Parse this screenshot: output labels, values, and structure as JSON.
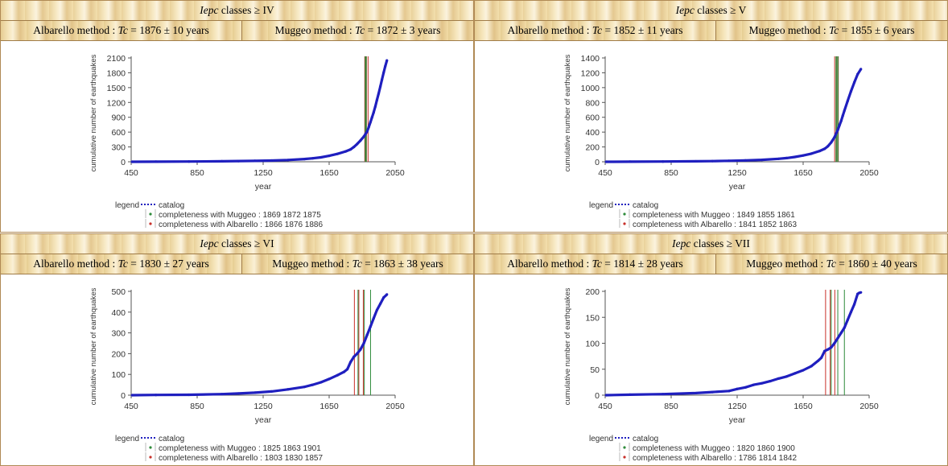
{
  "panels": [
    {
      "title_var": "Iepc",
      "title_text": " classes ≥ IV",
      "albarello": {
        "prefix": "Albarello method : ",
        "tc": "Tc",
        "value": " = 1876 ± 10 years"
      },
      "muggeo": {
        "prefix": "Muggeo method : ",
        "tc": "Tc",
        "value": " = 1872 ± 3 years"
      }
    },
    {
      "title_var": "Iepc",
      "title_text": " classes ≥ V",
      "albarello": {
        "prefix": "Albarello method : ",
        "tc": "Tc",
        "value": " = 1852 ± 11 years"
      },
      "muggeo": {
        "prefix": "Muggeo method : ",
        "tc": "Tc",
        "value": " = 1855 ± 6 years"
      }
    },
    {
      "title_var": "Iepc",
      "title_text": " classes ≥ VI",
      "albarello": {
        "prefix": "Albarello method : ",
        "tc": "Tc",
        "value": " = 1830 ± 27 years"
      },
      "muggeo": {
        "prefix": "Muggeo method : ",
        "tc": "Tc",
        "value": " = 1863 ± 38 years"
      }
    },
    {
      "title_var": "Iepc",
      "title_text": " classes ≥ VII",
      "albarello": {
        "prefix": "Albarello method : ",
        "tc": "Tc",
        "value": " = 1814 ± 28 years"
      },
      "muggeo": {
        "prefix": "Muggeo method : ",
        "tc": "Tc",
        "value": " = 1860 ± 40 years"
      }
    }
  ],
  "colors": {
    "catalog": "#1f1fbf",
    "muggeo": "#2e8b3a",
    "albarello": "#c8302a",
    "axis": "#555555"
  },
  "chart_data": [
    {
      "type": "line",
      "xlabel": "year",
      "ylabel": "cumulative number of earthquakes",
      "xlim": [
        450,
        2050
      ],
      "ylim": [
        0,
        2100
      ],
      "xticks": [
        450,
        850,
        1250,
        1650,
        2050
      ],
      "yticks": [
        0,
        300,
        600,
        900,
        1200,
        1500,
        1800,
        2100
      ],
      "legend_title": "legend",
      "series": [
        {
          "name": "catalog",
          "x": [
            456,
            600,
            800,
            1000,
            1100,
            1200,
            1300,
            1400,
            1500,
            1550,
            1600,
            1650,
            1700,
            1750,
            1780,
            1800,
            1820,
            1840,
            1860,
            1870,
            1880,
            1890,
            1900,
            1910,
            1920,
            1930,
            1940,
            1950,
            1960,
            1970,
            1980,
            1990,
            2000
          ],
          "y": [
            0,
            2,
            5,
            10,
            14,
            18,
            25,
            35,
            55,
            70,
            90,
            120,
            160,
            210,
            250,
            300,
            360,
            430,
            510,
            560,
            610,
            700,
            800,
            900,
            1000,
            1120,
            1250,
            1380,
            1520,
            1660,
            1800,
            1930,
            2050
          ]
        }
      ],
      "lines": [
        {
          "label": "completeness with Muggeo : 1869 1872 1875",
          "values": [
            1869,
            1872,
            1875
          ]
        },
        {
          "label": "completeness with Albarello : 1866 1876 1886",
          "values": [
            1866,
            1876,
            1886
          ]
        }
      ]
    },
    {
      "type": "line",
      "xlabel": "year",
      "ylabel": "cumulative number of earthquakes",
      "xlim": [
        450,
        2050
      ],
      "ylim": [
        0,
        1400
      ],
      "xticks": [
        450,
        850,
        1250,
        1650,
        2050
      ],
      "yticks": [
        0,
        200,
        400,
        600,
        800,
        1000,
        1200,
        1400
      ],
      "legend_title": "legend",
      "series": [
        {
          "name": "catalog",
          "x": [
            456,
            600,
            800,
            1000,
            1100,
            1200,
            1300,
            1400,
            1500,
            1550,
            1600,
            1650,
            1700,
            1750,
            1780,
            1800,
            1820,
            1840,
            1850,
            1860,
            1870,
            1880,
            1890,
            1900,
            1920,
            1940,
            1960,
            1980,
            2000
          ],
          "y": [
            0,
            1,
            3,
            6,
            9,
            13,
            18,
            26,
            40,
            50,
            65,
            85,
            110,
            145,
            175,
            210,
            260,
            330,
            380,
            430,
            490,
            550,
            620,
            690,
            820,
            950,
            1070,
            1180,
            1250
          ]
        }
      ],
      "lines": [
        {
          "label": "completeness with Muggeo : 1849 1855 1861",
          "values": [
            1849,
            1855,
            1861
          ]
        },
        {
          "label": "completeness with Albarello : 1841 1852 1863",
          "values": [
            1841,
            1852,
            1863
          ]
        }
      ]
    },
    {
      "type": "line",
      "xlabel": "year",
      "ylabel": "cumulative number of earthquakes",
      "xlim": [
        450,
        2050
      ],
      "ylim": [
        0,
        500
      ],
      "xticks": [
        450,
        850,
        1250,
        1650,
        2050
      ],
      "yticks": [
        0,
        100,
        200,
        300,
        400,
        500
      ],
      "legend_title": "legend",
      "series": [
        {
          "name": "catalog",
          "x": [
            456,
            600,
            800,
            1000,
            1100,
            1200,
            1300,
            1400,
            1500,
            1550,
            1600,
            1650,
            1700,
            1740,
            1760,
            1780,
            1800,
            1820,
            1840,
            1860,
            1880,
            1900,
            1920,
            1940,
            1960,
            1980,
            2000
          ],
          "y": [
            0,
            1,
            2,
            5,
            8,
            12,
            18,
            28,
            40,
            50,
            62,
            78,
            96,
            112,
            125,
            160,
            185,
            200,
            220,
            250,
            290,
            330,
            370,
            410,
            440,
            470,
            485
          ]
        }
      ],
      "lines": [
        {
          "label": "completeness with Muggeo : 1825 1863 1901",
          "values": [
            1825,
            1863,
            1901
          ]
        },
        {
          "label": "completeness with Albarello : 1803 1830 1857",
          "values": [
            1803,
            1830,
            1857
          ]
        }
      ]
    },
    {
      "type": "line",
      "xlabel": "year",
      "ylabel": "cumulative number of earthquakes",
      "xlim": [
        450,
        2050
      ],
      "ylim": [
        0,
        200
      ],
      "xticks": [
        450,
        850,
        1250,
        1650,
        2050
      ],
      "yticks": [
        0,
        50,
        100,
        150,
        200
      ],
      "legend_title": "legend",
      "series": [
        {
          "name": "catalog",
          "x": [
            456,
            600,
            800,
            1000,
            1100,
            1200,
            1250,
            1300,
            1350,
            1400,
            1450,
            1500,
            1550,
            1600,
            1650,
            1700,
            1740,
            1760,
            1780,
            1800,
            1820,
            1840,
            1860,
            1880,
            1900,
            1920,
            1940,
            1960,
            1980,
            1990,
            2000
          ],
          "y": [
            0,
            1,
            2,
            4,
            6,
            8,
            12,
            15,
            20,
            23,
            27,
            32,
            36,
            42,
            48,
            56,
            66,
            72,
            85,
            88,
            92,
            100,
            110,
            120,
            130,
            145,
            160,
            175,
            195,
            197,
            198
          ]
        }
      ],
      "lines": [
        {
          "label": "completeness with Muggeo : 1820 1860 1900",
          "values": [
            1820,
            1860,
            1900
          ]
        },
        {
          "label": "completeness with Albarello : 1786 1814 1842",
          "values": [
            1786,
            1814,
            1842
          ]
        }
      ]
    }
  ]
}
